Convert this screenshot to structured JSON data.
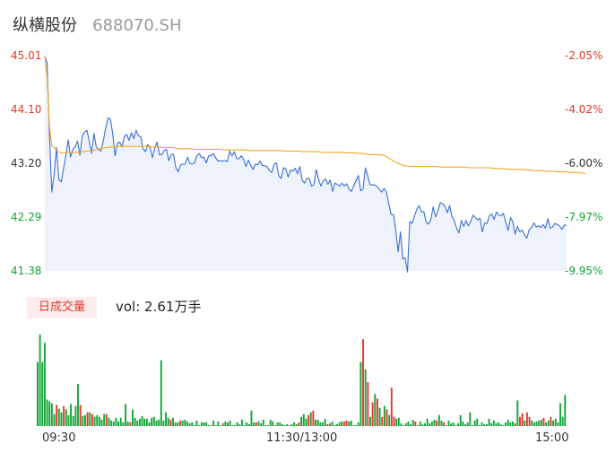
{
  "header": {
    "name": "纵横股份",
    "code": "688070.SH"
  },
  "volume_panel": {
    "badge": "日成交量",
    "vol_text": "vol: 2.61万手"
  },
  "colors": {
    "up": "#e8372b",
    "down": "#13a538",
    "price_line": "#3a6fd6",
    "avg_line": "#f5a623",
    "area_fill": "#eef3fb"
  },
  "chart_data": [
    {
      "type": "line",
      "title": "",
      "x_ticks": [
        "09:30",
        "11:30/13:00",
        "15:00"
      ],
      "y_ticks_left": [
        "45.01",
        "44.10",
        "43.20",
        "42.29",
        "41.38"
      ],
      "y_ticks_right": [
        "-2.05%",
        "-4.02%",
        "-6.00%",
        "-7.97%",
        "-9.95%"
      ],
      "ylim": [
        41.38,
        45.01
      ],
      "grid": false,
      "series": [
        {
          "values": [
            45.0,
            44.88,
            43.66,
            42.71,
            43.01,
            43.46,
            42.92,
            42.88,
            43.11,
            43.33,
            43.59,
            43.3,
            43.43,
            43.47,
            43.57,
            43.33,
            43.66,
            43.72,
            43.75,
            43.56,
            43.36,
            43.7,
            43.47,
            43.43,
            43.4,
            43.57,
            43.79,
            43.96,
            43.94,
            43.7,
            43.32,
            43.53,
            43.55,
            43.47,
            43.65,
            43.68,
            43.58,
            43.71,
            43.61,
            43.75,
            43.66,
            43.64,
            43.44,
            43.39,
            43.51,
            43.46,
            43.29,
            43.46,
            43.55,
            43.34,
            43.34,
            43.41,
            43.43,
            43.24,
            43.34,
            43.35,
            43.12,
            43.05,
            43.17,
            43.18,
            43.18,
            43.3,
            43.19,
            43.18,
            43.2,
            43.32,
            43.36,
            43.29,
            43.3,
            43.2,
            43.32,
            43.32,
            43.36,
            43.29,
            43.23,
            43.24,
            43.23,
            43.24,
            43.22,
            43.4,
            43.32,
            43.39,
            43.27,
            43.27,
            43.32,
            43.26,
            43.14,
            43.25,
            43.16,
            43.09,
            43.18,
            43.17,
            43.23,
            43.16,
            43.15,
            43.14,
            43.07,
            43.04,
            43.18,
            43.2,
            42.98,
            42.94,
            43.12,
            43.1,
            42.96,
            43.08,
            43.06,
            43.11,
            43.02,
            43.14,
            42.91,
            42.86,
            42.94,
            42.94,
            42.81,
            42.83,
            43.09,
            42.92,
            42.81,
            42.9,
            42.93,
            42.84,
            42.91,
            42.72,
            42.86,
            42.84,
            42.81,
            42.86,
            42.81,
            42.85,
            42.76,
            42.72,
            42.81,
            42.9,
            42.99,
            42.73,
            42.76,
            43.12,
            42.98,
            42.83,
            42.83,
            42.83,
            42.8,
            42.76,
            42.71,
            42.77,
            42.71,
            42.51,
            42.33,
            42.33,
            42.06,
            41.7,
            42.04,
            41.58,
            41.6,
            41.36,
            42.21,
            42.18,
            42.31,
            42.42,
            42.48,
            42.37,
            42.38,
            42.2,
            42.17,
            42.24,
            42.46,
            42.29,
            42.39,
            42.53,
            42.51,
            42.47,
            42.36,
            42.48,
            42.3,
            42.23,
            42.1,
            42.02,
            42.23,
            42.13,
            42.23,
            42.14,
            42.21,
            42.32,
            42.28,
            42.24,
            42.27,
            42.04,
            42.19,
            42.18,
            42.31,
            42.34,
            42.25,
            42.37,
            42.32,
            42.31,
            42.35,
            42.2,
            42.06,
            42.28,
            42.21,
            42.0,
            42.13,
            42.04,
            42.07,
            41.99,
            41.93,
            42.07,
            42.11,
            42.19,
            42.12,
            42.14,
            42.11,
            42.16,
            42.1,
            42.26,
            42.1,
            42.12,
            42.18,
            42.16,
            42.14,
            42.08,
            42.15,
            42.15
          ]
        },
        {
          "values": [
            45.0,
            44.65,
            43.82,
            43.48,
            43.46,
            43.41,
            43.38,
            43.37,
            43.37,
            43.37,
            43.38,
            43.38,
            43.38,
            43.38,
            43.38,
            43.38,
            43.39,
            43.39,
            43.4,
            43.4,
            43.4,
            43.41,
            43.43,
            43.44,
            43.45,
            43.45,
            43.46,
            43.46,
            43.47,
            43.47,
            43.47,
            43.48,
            43.48,
            43.48,
            43.48,
            43.48,
            43.48,
            43.48,
            43.48,
            43.48,
            43.48,
            43.48,
            43.48,
            43.48,
            43.48,
            43.47,
            43.47,
            43.47,
            43.47,
            43.47,
            43.46,
            43.46,
            43.46,
            43.46,
            43.46,
            43.45,
            43.45,
            43.44,
            43.44,
            43.44,
            43.44,
            43.44,
            43.44,
            43.44,
            43.43,
            43.43,
            43.43,
            43.43,
            43.43,
            43.43,
            43.43,
            43.43,
            43.43,
            43.43,
            43.43,
            43.43,
            43.42,
            43.42,
            43.42,
            43.42,
            43.42,
            43.42,
            43.42,
            43.42,
            43.42,
            43.42,
            43.42,
            43.41,
            43.41,
            43.41,
            43.41,
            43.41,
            43.41,
            43.41,
            43.41,
            43.41,
            43.41,
            43.41,
            43.41,
            43.41,
            43.41,
            43.41,
            43.4,
            43.4,
            43.4,
            43.4,
            43.4,
            43.4,
            43.4,
            43.4,
            43.39,
            43.39,
            43.39,
            43.39,
            43.39,
            43.39,
            43.39,
            43.39,
            43.38,
            43.38,
            43.38,
            43.38,
            43.38,
            43.38,
            43.38,
            43.38,
            43.38,
            43.38,
            43.37,
            43.37,
            43.37,
            43.37,
            43.37,
            43.37,
            43.36,
            43.36,
            43.36,
            43.35,
            43.35,
            43.34,
            43.34,
            43.34,
            43.34,
            43.34,
            43.33,
            43.33,
            43.31,
            43.28,
            43.26,
            43.23,
            43.21,
            43.19,
            43.18,
            43.16,
            43.15,
            43.15,
            43.14,
            43.14,
            43.14,
            43.14,
            43.14,
            43.14,
            43.14,
            43.14,
            43.14,
            43.14,
            43.14,
            43.14,
            43.14,
            43.13,
            43.13,
            43.13,
            43.13,
            43.13,
            43.13,
            43.13,
            43.13,
            43.13,
            43.13,
            43.13,
            43.13,
            43.12,
            43.12,
            43.12,
            43.12,
            43.12,
            43.12,
            43.12,
            43.12,
            43.12,
            43.12,
            43.11,
            43.11,
            43.11,
            43.1,
            43.1,
            43.1,
            43.1,
            43.1,
            43.09,
            43.09,
            43.09,
            43.09,
            43.09,
            43.09,
            43.09,
            43.08,
            43.08,
            43.08,
            43.07,
            43.07,
            43.07,
            43.07,
            43.07,
            43.06,
            43.06,
            43.06,
            43.06,
            43.05,
            43.05,
            43.05,
            43.05,
            43.05,
            43.05,
            43.04,
            43.04,
            43.04,
            43.04,
            43.04,
            43.03,
            43.03,
            43.02
          ]
        }
      ]
    },
    {
      "type": "bar",
      "title": "",
      "ylim": [
        0,
        100
      ],
      "bars": [
        [
          70,
          1
        ],
        [
          100,
          1
        ],
        [
          70,
          1
        ],
        [
          91,
          1
        ],
        [
          29,
          1
        ],
        [
          27,
          1
        ],
        [
          25,
          1
        ],
        [
          13,
          1
        ],
        [
          23,
          0
        ],
        [
          19,
          1
        ],
        [
          15,
          1
        ],
        [
          22,
          0
        ],
        [
          18,
          1
        ],
        [
          12,
          1
        ],
        [
          24,
          1
        ],
        [
          11,
          1
        ],
        [
          22,
          1
        ],
        [
          46,
          1
        ],
        [
          23,
          0
        ],
        [
          11,
          1
        ],
        [
          12,
          1
        ],
        [
          15,
          0
        ],
        [
          15,
          1
        ],
        [
          13,
          0
        ],
        [
          10,
          1
        ],
        [
          12,
          1
        ],
        [
          10,
          1
        ],
        [
          7,
          1
        ],
        [
          13,
          1
        ],
        [
          13,
          0
        ],
        [
          9,
          1
        ],
        [
          6,
          1
        ],
        [
          5,
          1
        ],
        [
          9,
          1
        ],
        [
          5,
          1
        ],
        [
          9,
          1
        ],
        [
          4,
          1
        ],
        [
          24,
          1
        ],
        [
          5,
          1
        ],
        [
          4,
          0
        ],
        [
          18,
          1
        ],
        [
          9,
          1
        ],
        [
          6,
          1
        ],
        [
          8,
          1
        ],
        [
          11,
          1
        ],
        [
          8,
          1
        ],
        [
          8,
          1
        ],
        [
          4,
          1
        ],
        [
          9,
          1
        ],
        [
          10,
          1
        ],
        [
          6,
          1
        ],
        [
          7,
          1
        ],
        [
          72,
          1
        ],
        [
          6,
          1
        ],
        [
          15,
          1
        ],
        [
          9,
          1
        ],
        [
          7,
          0
        ],
        [
          9,
          1
        ],
        [
          4,
          1
        ],
        [
          4,
          1
        ],
        [
          6,
          0
        ],
        [
          6,
          1
        ],
        [
          7,
          1
        ],
        [
          5,
          1
        ],
        [
          3,
          1
        ],
        [
          4,
          1
        ],
        [
          1,
          1
        ],
        [
          6,
          1
        ],
        [
          1,
          1
        ],
        [
          4,
          1
        ],
        [
          4,
          1
        ],
        [
          4,
          1
        ],
        [
          1,
          1
        ],
        [
          1,
          1
        ],
        [
          6,
          1
        ],
        [
          1,
          1
        ],
        [
          5,
          1
        ],
        [
          1,
          1
        ],
        [
          3,
          0
        ],
        [
          5,
          1
        ],
        [
          4,
          1
        ],
        [
          6,
          1
        ],
        [
          1,
          1
        ],
        [
          1,
          1
        ],
        [
          4,
          1
        ],
        [
          2,
          1
        ],
        [
          7,
          1
        ],
        [
          1,
          1
        ],
        [
          4,
          1
        ],
        [
          2,
          1
        ],
        [
          17,
          1
        ],
        [
          4,
          1
        ],
        [
          4,
          0
        ],
        [
          5,
          1
        ],
        [
          3,
          1
        ],
        [
          7,
          1
        ],
        [
          1,
          1
        ],
        [
          1,
          1
        ],
        [
          7,
          1
        ],
        [
          5,
          1
        ],
        [
          1,
          0
        ],
        [
          4,
          1
        ],
        [
          4,
          1
        ],
        [
          2,
          1
        ],
        [
          1,
          1
        ],
        [
          2,
          1
        ],
        [
          1,
          1
        ],
        [
          2,
          1
        ],
        [
          4,
          1
        ],
        [
          2,
          1
        ],
        [
          4,
          0
        ],
        [
          10,
          1
        ],
        [
          13,
          1
        ],
        [
          8,
          1
        ],
        [
          12,
          0
        ],
        [
          15,
          1
        ],
        [
          17,
          0
        ],
        [
          7,
          1
        ],
        [
          7,
          1
        ],
        [
          4,
          1
        ],
        [
          4,
          1
        ],
        [
          8,
          1
        ],
        [
          2,
          0
        ],
        [
          3,
          1
        ],
        [
          5,
          1
        ],
        [
          1,
          1
        ],
        [
          2,
          1
        ],
        [
          4,
          1
        ],
        [
          5,
          1
        ],
        [
          5,
          0
        ],
        [
          6,
          0
        ],
        [
          5,
          1
        ],
        [
          6,
          1
        ],
        [
          1,
          1
        ],
        [
          1,
          1
        ],
        [
          4,
          1
        ],
        [
          70,
          1
        ],
        [
          95,
          0
        ],
        [
          62,
          1
        ],
        [
          48,
          0
        ],
        [
          10,
          1
        ],
        [
          26,
          0
        ],
        [
          35,
          1
        ],
        [
          30,
          0
        ],
        [
          20,
          1
        ],
        [
          10,
          0
        ],
        [
          22,
          1
        ],
        [
          18,
          0
        ],
        [
          12,
          1
        ],
        [
          42,
          0
        ],
        [
          10,
          0
        ],
        [
          8,
          1
        ],
        [
          9,
          1
        ],
        [
          3,
          1
        ],
        [
          1,
          1
        ],
        [
          3,
          1
        ],
        [
          5,
          1
        ],
        [
          2,
          1
        ],
        [
          7,
          1
        ],
        [
          5,
          0
        ],
        [
          1,
          1
        ],
        [
          5,
          1
        ],
        [
          2,
          1
        ],
        [
          3,
          1
        ],
        [
          8,
          1
        ],
        [
          3,
          1
        ],
        [
          5,
          1
        ],
        [
          7,
          1
        ],
        [
          6,
          0
        ],
        [
          12,
          1
        ],
        [
          6,
          1
        ],
        [
          4,
          0
        ],
        [
          1,
          1
        ],
        [
          6,
          1
        ],
        [
          3,
          1
        ],
        [
          4,
          1
        ],
        [
          1,
          1
        ],
        [
          3,
          1
        ],
        [
          12,
          1
        ],
        [
          5,
          1
        ],
        [
          2,
          1
        ],
        [
          4,
          1
        ],
        [
          15,
          1
        ],
        [
          1,
          1
        ],
        [
          6,
          1
        ],
        [
          8,
          1
        ],
        [
          1,
          1
        ],
        [
          4,
          1
        ],
        [
          2,
          1
        ],
        [
          2,
          1
        ],
        [
          8,
          1
        ],
        [
          3,
          1
        ],
        [
          6,
          1
        ],
        [
          3,
          1
        ],
        [
          4,
          1
        ],
        [
          2,
          1
        ],
        [
          1,
          1
        ],
        [
          4,
          1
        ],
        [
          7,
          1
        ],
        [
          4,
          1
        ],
        [
          5,
          1
        ],
        [
          3,
          1
        ],
        [
          28,
          1
        ],
        [
          10,
          0
        ],
        [
          14,
          0
        ],
        [
          6,
          1
        ],
        [
          15,
          0
        ],
        [
          10,
          0
        ],
        [
          6,
          1
        ],
        [
          4,
          1
        ],
        [
          5,
          1
        ],
        [
          6,
          1
        ],
        [
          7,
          1
        ],
        [
          9,
          0
        ],
        [
          4,
          1
        ],
        [
          6,
          1
        ],
        [
          10,
          0
        ],
        [
          6,
          1
        ],
        [
          8,
          1
        ],
        [
          4,
          1
        ],
        [
          25,
          1
        ],
        [
          10,
          1
        ],
        [
          34,
          1
        ]
      ]
    }
  ]
}
